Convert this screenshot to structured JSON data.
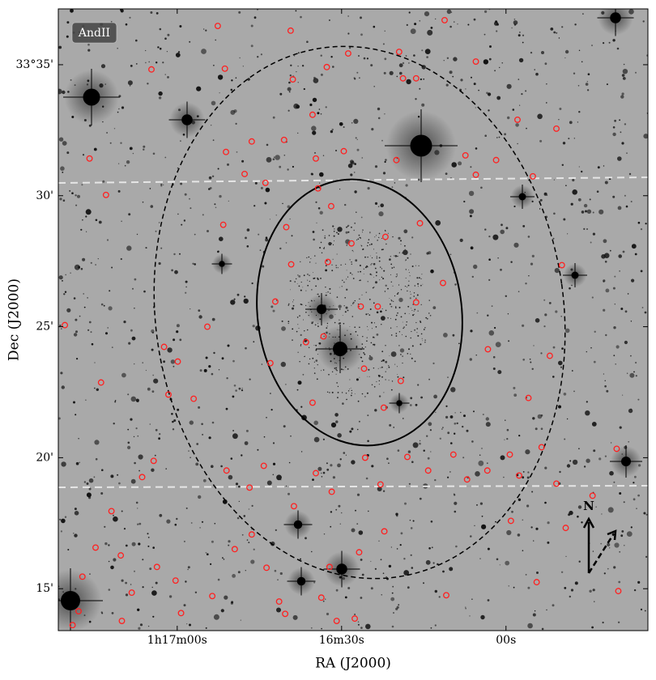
{
  "chart_data": {
    "type": "scatter",
    "xlabel": "RA (J2000)",
    "ylabel": "Dec (J2000)",
    "annotations": {
      "field": "AndII",
      "north": "N"
    },
    "color": "#ff2020",
    "x": [
      80.5,
      76.0,
      73.0,
      73.9,
      64.7,
      52.6,
      51.3,
      39.3,
      38.9,
      28.8,
      32.7,
      19.5,
      18.8,
      16.4,
      11.2,
      5.5,
      -2.1,
      -9.2,
      51.1,
      46.4,
      40.5,
      35.3,
      29.6,
      34.7,
      47.7,
      43.9,
      34.3,
      31.9,
      20.0,
      7.4,
      1.8,
      5.5,
      -4.9,
      51.6,
      40.1,
      15.7,
      22.0,
      28.2,
      39.2,
      32.5,
      -10.2,
      11.5,
      42.1,
      26.5,
      23.4,
      16.4,
      54.5,
      62.4,
      59.9,
      36.5,
      33.3,
      43.0,
      25.9,
      19.2,
      35.3,
      22.3,
      61.6,
      57.0,
      3.3,
      -8.0,
      -4.1,
      25.7,
      18.0,
      9.6,
      -6.5,
      -20.2,
      64.3,
      44.2,
      51.0,
      34.7,
      14.2,
      3.4,
      -0.7,
      66.4,
      46.8,
      38.7,
      31.8,
      22.9,
      7.1,
      -2.4,
      -9.2,
      -15.8,
      72.0,
      -0.9,
      22.2,
      -10.9,
      46.4,
      74.9,
      70.3,
      49.5,
      26.8,
      63.7,
      77.3,
      43.7,
      32.2,
      60.3,
      68.3,
      78.0,
      53.6,
      41.4,
      33.7,
      10.9,
      -5.6,
      -20.5,
      59.3,
      40.3,
      30.9,
      27.6,
      70.1,
      79.1
    ],
    "values": [
      25.06,
      31.42,
      30.03,
      22.87,
      34.82,
      36.48,
      34.85,
      36.3,
      34.44,
      35.43,
      34.91,
      35.49,
      34.48,
      34.48,
      36.7,
      35.12,
      32.9,
      32.56,
      31.67,
      32.07,
      32.13,
      33.09,
      31.7,
      31.42,
      30.83,
      30.49,
      30.28,
      29.6,
      31.36,
      31.54,
      31.36,
      30.8,
      30.74,
      28.89,
      28.8,
      28.95,
      28.43,
      28.18,
      27.38,
      27.47,
      27.35,
      26.67,
      25.96,
      25.77,
      25.77,
      25.93,
      25.0,
      24.23,
      23.67,
      24.41,
      24.63,
      23.61,
      23.4,
      22.93,
      22.1,
      21.91,
      22.41,
      22.25,
      24.14,
      23.89,
      22.28,
      20.0,
      20.03,
      20.12,
      20.4,
      20.34,
      19.88,
      19.69,
      19.51,
      19.41,
      19.51,
      19.51,
      20.12,
      19.26,
      18.86,
      18.15,
      18.7,
      18.98,
      19.17,
      19.32,
      19.01,
      18.55,
      17.96,
      17.59,
      17.19,
      17.32,
      17.07,
      16.57,
      16.27,
      16.51,
      16.39,
      15.83,
      15.46,
      15.8,
      15.83,
      15.31,
      14.85,
      14.14,
      14.72,
      14.51,
      14.66,
      14.75,
      15.25,
      14.91,
      14.07,
      14.04,
      13.77,
      13.86,
      13.77,
      13.61
    ],
    "xlim": [
      81.7,
      -25.9
    ],
    "xticks": [
      {
        "value": 60,
        "label": "1h17m00s"
      },
      {
        "value": 30,
        "label": "16m30s"
      },
      {
        "value": 0,
        "label": "00s"
      }
    ],
    "ylim": [
      13.4,
      37.13
    ],
    "yticks": [
      {
        "value": 35,
        "label": "33°35'"
      },
      {
        "value": 30,
        "label": "30'"
      },
      {
        "value": 25,
        "label": "25'"
      },
      {
        "value": 20,
        "label": "20'"
      },
      {
        "value": 15,
        "label": "15'"
      }
    ]
  }
}
